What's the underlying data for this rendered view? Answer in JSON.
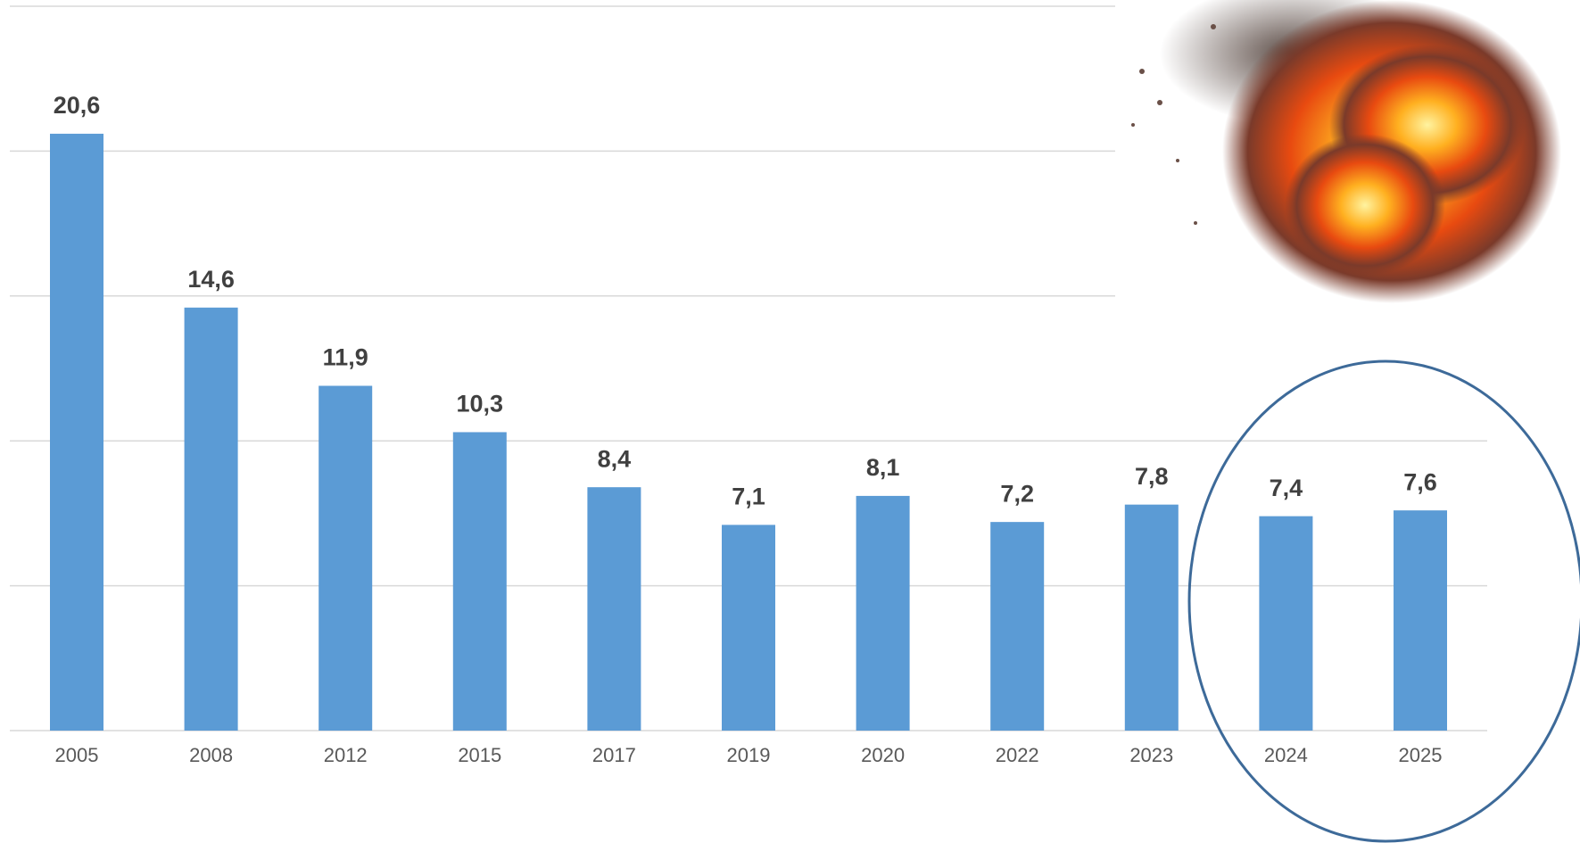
{
  "chart_data": {
    "type": "bar",
    "categories": [
      "2005",
      "2008",
      "2012",
      "2015",
      "2017",
      "2019",
      "2020",
      "2022",
      "2023",
      "2024",
      "2025"
    ],
    "values": [
      20.6,
      14.6,
      11.9,
      10.3,
      8.4,
      7.1,
      8.1,
      7.2,
      7.8,
      7.4,
      7.6
    ],
    "value_labels": [
      "20,6",
      "14,6",
      "11,9",
      "10,3",
      "8,4",
      "7,1",
      "8,1",
      "7,2",
      "7,8",
      "7,4",
      "7,6"
    ],
    "color": "#5b9bd5",
    "ylim": [
      0,
      25
    ],
    "yticks": [
      0,
      5,
      10,
      15,
      20,
      25
    ],
    "grid": true
  }
}
